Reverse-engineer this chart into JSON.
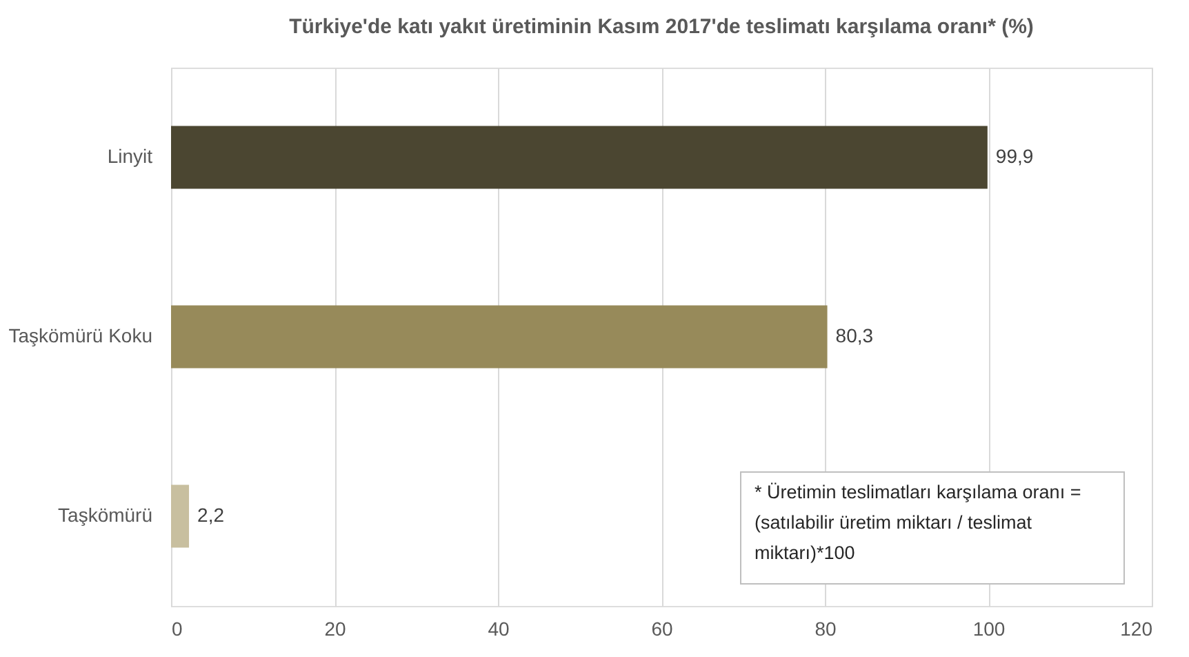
{
  "chart_data": {
    "type": "bar",
    "orientation": "horizontal",
    "title": "Türkiye'de katı yakıt üretiminin Kasım 2017'de teslimatı karşılama oranı* (%)",
    "categories": [
      "Linyit",
      "Taşkömürü Koku",
      "Taşkömürü"
    ],
    "values": [
      99.9,
      80.3,
      2.2
    ],
    "value_labels": [
      "99,9",
      "80,3",
      "2,2"
    ],
    "colors": [
      "#4b4631",
      "#978a5a",
      "#c8bf9f"
    ],
    "xlim": [
      0,
      120
    ],
    "xticks": [
      0,
      20,
      40,
      60,
      80,
      100,
      120
    ],
    "grid": "x",
    "annotations": [
      "* Üretimin teslimatları karşılama oranı = (satılabilir üretim miktarı / teslimat miktarı)*100"
    ]
  }
}
